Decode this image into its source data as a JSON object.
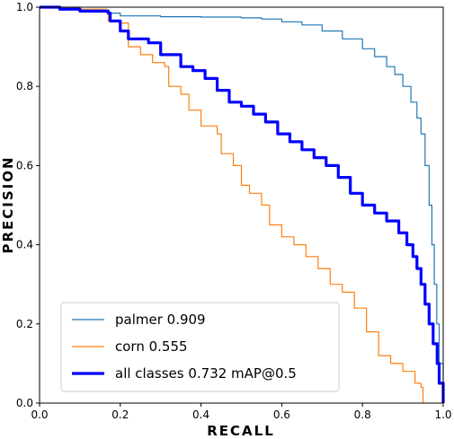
{
  "chart_data": {
    "type": "line",
    "xlabel": "RECALL",
    "ylabel": "PRECISION",
    "xlim": [
      0.0,
      1.0
    ],
    "ylim": [
      0.0,
      1.0
    ],
    "x_ticks": [
      "0.0",
      "0.2",
      "0.4",
      "0.6",
      "0.8",
      "1.0"
    ],
    "y_ticks": [
      "0.0",
      "0.2",
      "0.4",
      "0.6",
      "0.8",
      "1.0"
    ],
    "grid": false,
    "legend_position": "bottom-left",
    "series": [
      {
        "name": "palmer 0.909",
        "color": "#1f77b4",
        "points": [
          [
            0.0,
            1.0
          ],
          [
            0.05,
            0.993
          ],
          [
            0.1,
            0.99
          ],
          [
            0.17,
            0.985
          ],
          [
            0.2,
            0.978
          ],
          [
            0.3,
            0.976
          ],
          [
            0.4,
            0.975
          ],
          [
            0.5,
            0.973
          ],
          [
            0.55,
            0.97
          ],
          [
            0.6,
            0.963
          ],
          [
            0.65,
            0.955
          ],
          [
            0.7,
            0.94
          ],
          [
            0.75,
            0.92
          ],
          [
            0.8,
            0.895
          ],
          [
            0.83,
            0.875
          ],
          [
            0.86,
            0.85
          ],
          [
            0.88,
            0.83
          ],
          [
            0.9,
            0.8
          ],
          [
            0.92,
            0.76
          ],
          [
            0.935,
            0.72
          ],
          [
            0.945,
            0.68
          ],
          [
            0.955,
            0.6
          ],
          [
            0.965,
            0.5
          ],
          [
            0.972,
            0.4
          ],
          [
            0.978,
            0.3
          ],
          [
            0.984,
            0.2
          ],
          [
            0.99,
            0.1
          ],
          [
            1.0,
            0.0
          ]
        ]
      },
      {
        "name": "corn 0.555",
        "color": "#ff7f0e",
        "points": [
          [
            0.0,
            1.0
          ],
          [
            0.1,
            0.995
          ],
          [
            0.165,
            0.993
          ],
          [
            0.17,
            0.965
          ],
          [
            0.2,
            0.96
          ],
          [
            0.22,
            0.9
          ],
          [
            0.25,
            0.88
          ],
          [
            0.28,
            0.86
          ],
          [
            0.31,
            0.85
          ],
          [
            0.32,
            0.8
          ],
          [
            0.35,
            0.78
          ],
          [
            0.37,
            0.74
          ],
          [
            0.4,
            0.7
          ],
          [
            0.44,
            0.68
          ],
          [
            0.45,
            0.63
          ],
          [
            0.48,
            0.6
          ],
          [
            0.5,
            0.55
          ],
          [
            0.52,
            0.53
          ],
          [
            0.55,
            0.5
          ],
          [
            0.57,
            0.45
          ],
          [
            0.6,
            0.42
          ],
          [
            0.63,
            0.4
          ],
          [
            0.66,
            0.37
          ],
          [
            0.69,
            0.34
          ],
          [
            0.72,
            0.3
          ],
          [
            0.75,
            0.28
          ],
          [
            0.78,
            0.24
          ],
          [
            0.81,
            0.18
          ],
          [
            0.84,
            0.12
          ],
          [
            0.87,
            0.1
          ],
          [
            0.9,
            0.08
          ],
          [
            0.93,
            0.05
          ],
          [
            0.945,
            0.04
          ],
          [
            0.95,
            0.0
          ]
        ]
      },
      {
        "name": "all classes 0.732 mAP@0.5",
        "color": "#0000ff",
        "points": [
          [
            0.0,
            1.0
          ],
          [
            0.05,
            0.995
          ],
          [
            0.1,
            0.99
          ],
          [
            0.17,
            0.985
          ],
          [
            0.175,
            0.965
          ],
          [
            0.2,
            0.94
          ],
          [
            0.22,
            0.92
          ],
          [
            0.27,
            0.91
          ],
          [
            0.3,
            0.88
          ],
          [
            0.35,
            0.85
          ],
          [
            0.38,
            0.84
          ],
          [
            0.41,
            0.82
          ],
          [
            0.44,
            0.79
          ],
          [
            0.47,
            0.76
          ],
          [
            0.5,
            0.75
          ],
          [
            0.53,
            0.73
          ],
          [
            0.56,
            0.71
          ],
          [
            0.59,
            0.68
          ],
          [
            0.62,
            0.66
          ],
          [
            0.65,
            0.64
          ],
          [
            0.68,
            0.62
          ],
          [
            0.71,
            0.6
          ],
          [
            0.74,
            0.57
          ],
          [
            0.77,
            0.53
          ],
          [
            0.8,
            0.5
          ],
          [
            0.83,
            0.48
          ],
          [
            0.86,
            0.46
          ],
          [
            0.89,
            0.43
          ],
          [
            0.91,
            0.4
          ],
          [
            0.925,
            0.37
          ],
          [
            0.935,
            0.34
          ],
          [
            0.945,
            0.3
          ],
          [
            0.955,
            0.25
          ],
          [
            0.965,
            0.2
          ],
          [
            0.975,
            0.15
          ],
          [
            0.985,
            0.1
          ],
          [
            0.99,
            0.05
          ],
          [
            1.0,
            0.0
          ]
        ]
      }
    ]
  }
}
